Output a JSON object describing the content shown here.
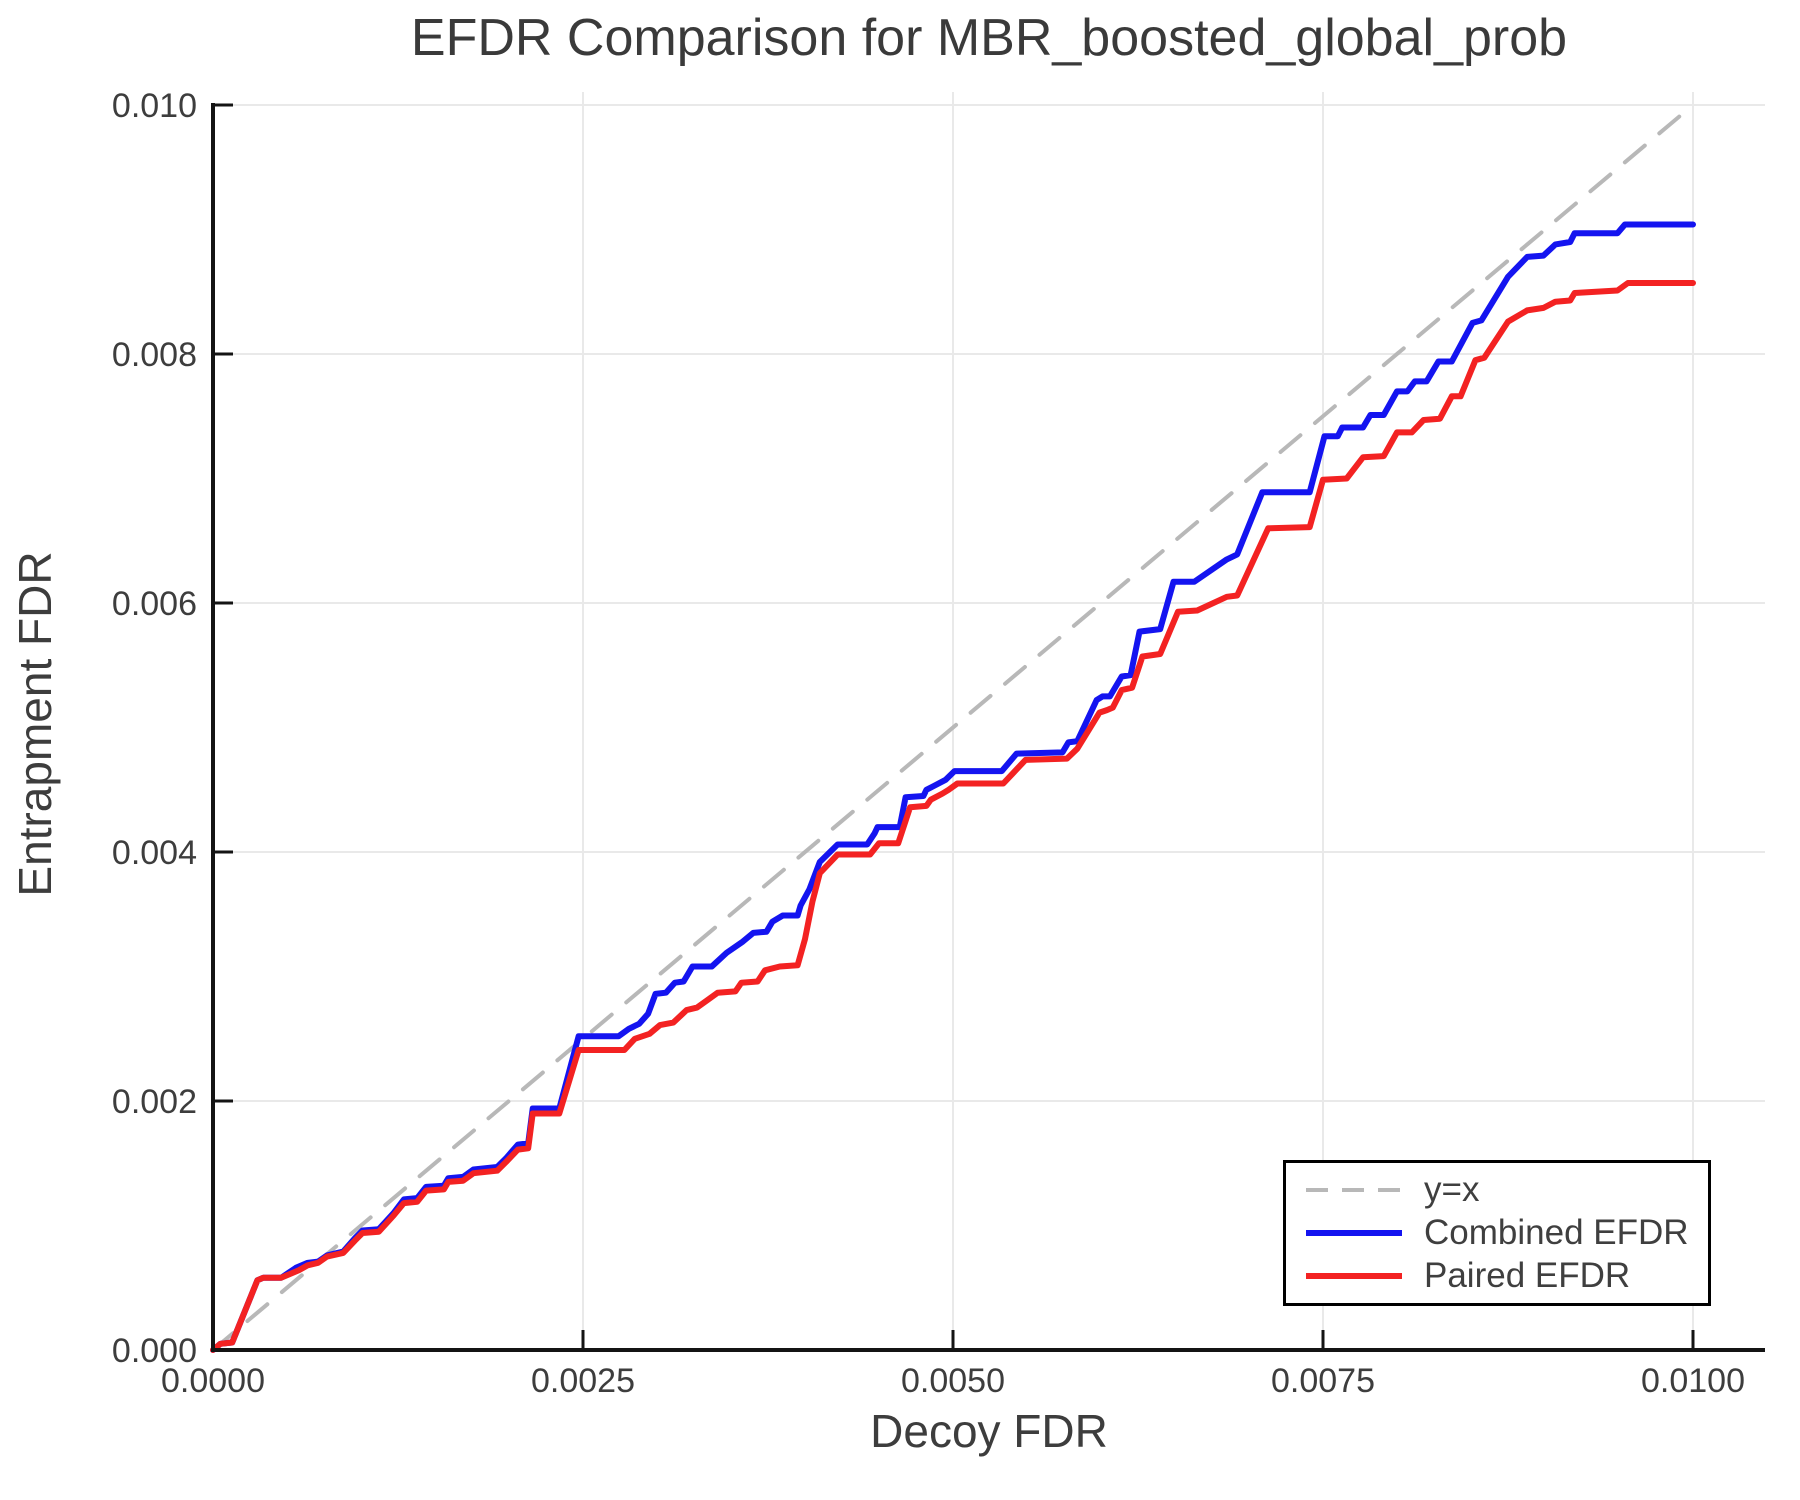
{
  "page": {
    "background": "#ffffff"
  },
  "chart_data": {
    "type": "line",
    "title": "EFDR Comparison for MBR_boosted_global_prob",
    "xlabel": "Decoy FDR",
    "ylabel": "Entrapment FDR",
    "xlim": [
      0.0,
      0.0105
    ],
    "ylim": [
      0.0,
      0.0101
    ],
    "grid": true,
    "grid_color": "#e9e9e9",
    "axis_color": "#141414",
    "text_color": "#3d3d3d",
    "legend_position": "bottom-right",
    "x_ticks": [
      {
        "value": 0.0,
        "label": "0.0000"
      },
      {
        "value": 0.0025,
        "label": "0.0025"
      },
      {
        "value": 0.005,
        "label": "0.0050"
      },
      {
        "value": 0.0075,
        "label": "0.0075"
      },
      {
        "value": 0.01,
        "label": "0.0100"
      }
    ],
    "y_ticks": [
      {
        "value": 0.0,
        "label": "0.000"
      },
      {
        "value": 0.002,
        "label": "0.002"
      },
      {
        "value": 0.004,
        "label": "0.004"
      },
      {
        "value": 0.006,
        "label": "0.006"
      },
      {
        "value": 0.008,
        "label": "0.008"
      },
      {
        "value": 0.01,
        "label": "0.010"
      }
    ],
    "series": [
      {
        "name": "y=x",
        "color": "#b8b8b8",
        "style": "dashed",
        "width": 4,
        "points": [
          [
            0.0,
            0.0
          ],
          [
            0.01,
            0.01
          ]
        ]
      },
      {
        "name": "Combined EFDR",
        "color": "#1414f0",
        "style": "solid",
        "width": 6,
        "points": [
          [
            0.0,
            0.0
          ],
          [
            5e-05,
            5e-05
          ],
          [
            0.00013,
            6e-05
          ],
          [
            0.0003,
            0.00056
          ],
          [
            0.00034,
            0.00058
          ],
          [
            0.00046,
            0.00058
          ],
          [
            0.00056,
            0.00066
          ],
          [
            0.00064,
            0.0007
          ],
          [
            0.00071,
            0.00071
          ],
          [
            0.00077,
            0.00076
          ],
          [
            0.00088,
            0.00079
          ],
          [
            0.00096,
            0.0009
          ],
          [
            0.00101,
            0.00096
          ],
          [
            0.00112,
            0.00097
          ],
          [
            0.00122,
            0.0011
          ],
          [
            0.00129,
            0.00121
          ],
          [
            0.00138,
            0.00122
          ],
          [
            0.00144,
            0.00131
          ],
          [
            0.00156,
            0.00132
          ],
          [
            0.00159,
            0.00138
          ],
          [
            0.00169,
            0.00139
          ],
          [
            0.00176,
            0.00145
          ],
          [
            0.00192,
            0.00147
          ],
          [
            0.00198,
            0.00154
          ],
          [
            0.00206,
            0.00165
          ],
          [
            0.00213,
            0.00166
          ],
          [
            0.00216,
            0.00194
          ],
          [
            0.00234,
            0.00194
          ],
          [
            0.00247,
            0.00252
          ],
          [
            0.00274,
            0.00252
          ],
          [
            0.00281,
            0.00258
          ],
          [
            0.00288,
            0.00262
          ],
          [
            0.00294,
            0.0027
          ],
          [
            0.00299,
            0.00286
          ],
          [
            0.00306,
            0.00287
          ],
          [
            0.00312,
            0.00295
          ],
          [
            0.00318,
            0.00296
          ],
          [
            0.00324,
            0.00308
          ],
          [
            0.00337,
            0.00308
          ],
          [
            0.00347,
            0.00319
          ],
          [
            0.00358,
            0.00328
          ],
          [
            0.00365,
            0.00335
          ],
          [
            0.00374,
            0.00336
          ],
          [
            0.00378,
            0.00344
          ],
          [
            0.00385,
            0.00349
          ],
          [
            0.00395,
            0.00349
          ],
          [
            0.00397,
            0.00357
          ],
          [
            0.00403,
            0.0037
          ],
          [
            0.0041,
            0.00392
          ],
          [
            0.00422,
            0.00406
          ],
          [
            0.00442,
            0.00406
          ],
          [
            0.00447,
            0.00415
          ],
          [
            0.00449,
            0.0042
          ],
          [
            0.00464,
            0.0042
          ],
          [
            0.00468,
            0.00444
          ],
          [
            0.0048,
            0.00445
          ],
          [
            0.00482,
            0.0045
          ],
          [
            0.00487,
            0.00453
          ],
          [
            0.00495,
            0.00458
          ],
          [
            0.00501,
            0.00465
          ],
          [
            0.00533,
            0.00465
          ],
          [
            0.00543,
            0.00479
          ],
          [
            0.00574,
            0.0048
          ],
          [
            0.00578,
            0.00488
          ],
          [
            0.00584,
            0.00489
          ],
          [
            0.00597,
            0.00522
          ],
          [
            0.00601,
            0.00525
          ],
          [
            0.00606,
            0.00525
          ],
          [
            0.00614,
            0.00541
          ],
          [
            0.0062,
            0.00542
          ],
          [
            0.00626,
            0.00577
          ],
          [
            0.0064,
            0.00579
          ],
          [
            0.00649,
            0.00617
          ],
          [
            0.00663,
            0.00617
          ],
          [
            0.00685,
            0.00635
          ],
          [
            0.00692,
            0.00639
          ],
          [
            0.00709,
            0.00689
          ],
          [
            0.00741,
            0.00689
          ],
          [
            0.00751,
            0.00734
          ],
          [
            0.0076,
            0.00734
          ],
          [
            0.00763,
            0.00741
          ],
          [
            0.00777,
            0.00741
          ],
          [
            0.00782,
            0.00751
          ],
          [
            0.00791,
            0.00751
          ],
          [
            0.008,
            0.0077
          ],
          [
            0.00807,
            0.0077
          ],
          [
            0.00812,
            0.00778
          ],
          [
            0.0082,
            0.00778
          ],
          [
            0.00828,
            0.00794
          ],
          [
            0.00837,
            0.00794
          ],
          [
            0.00851,
            0.00825
          ],
          [
            0.00857,
            0.00827
          ],
          [
            0.00875,
            0.00862
          ],
          [
            0.00888,
            0.00878
          ],
          [
            0.00899,
            0.00879
          ],
          [
            0.00907,
            0.00888
          ],
          [
            0.00917,
            0.0089
          ],
          [
            0.0092,
            0.00897
          ],
          [
            0.00949,
            0.00897
          ],
          [
            0.00954,
            0.00904
          ],
          [
            0.01,
            0.00904
          ]
        ]
      },
      {
        "name": "Paired EFDR",
        "color": "#f32222",
        "style": "solid",
        "width": 6,
        "points": [
          [
            0.0,
            0.0
          ],
          [
            5e-05,
            5e-05
          ],
          [
            0.00013,
            6e-05
          ],
          [
            0.0003,
            0.00056
          ],
          [
            0.00034,
            0.00058
          ],
          [
            0.00046,
            0.00058
          ],
          [
            0.00058,
            0.00064
          ],
          [
            0.00064,
            0.00068
          ],
          [
            0.00071,
            0.0007
          ],
          [
            0.00077,
            0.00075
          ],
          [
            0.00088,
            0.00078
          ],
          [
            0.00096,
            0.00088
          ],
          [
            0.00101,
            0.00094
          ],
          [
            0.00112,
            0.00095
          ],
          [
            0.00122,
            0.00108
          ],
          [
            0.00129,
            0.00118
          ],
          [
            0.00138,
            0.00119
          ],
          [
            0.00144,
            0.00128
          ],
          [
            0.00156,
            0.00129
          ],
          [
            0.00159,
            0.00135
          ],
          [
            0.00169,
            0.00136
          ],
          [
            0.00176,
            0.00142
          ],
          [
            0.00192,
            0.00144
          ],
          [
            0.00198,
            0.00151
          ],
          [
            0.00206,
            0.00161
          ],
          [
            0.00213,
            0.00162
          ],
          [
            0.00216,
            0.0019
          ],
          [
            0.00234,
            0.0019
          ],
          [
            0.00247,
            0.00241
          ],
          [
            0.00278,
            0.00241
          ],
          [
            0.00285,
            0.0025
          ],
          [
            0.00295,
            0.00254
          ],
          [
            0.00302,
            0.00261
          ],
          [
            0.00311,
            0.00263
          ],
          [
            0.0032,
            0.00273
          ],
          [
            0.00327,
            0.00275
          ],
          [
            0.00334,
            0.00281
          ],
          [
            0.00341,
            0.00287
          ],
          [
            0.00353,
            0.00288
          ],
          [
            0.00357,
            0.00295
          ],
          [
            0.00368,
            0.00296
          ],
          [
            0.00373,
            0.00305
          ],
          [
            0.00383,
            0.00308
          ],
          [
            0.00395,
            0.00309
          ],
          [
            0.004,
            0.0033
          ],
          [
            0.00405,
            0.0036
          ],
          [
            0.0041,
            0.00383
          ],
          [
            0.00422,
            0.00398
          ],
          [
            0.00444,
            0.00398
          ],
          [
            0.0045,
            0.00407
          ],
          [
            0.00463,
            0.00407
          ],
          [
            0.00471,
            0.00436
          ],
          [
            0.00482,
            0.00437
          ],
          [
            0.00485,
            0.00442
          ],
          [
            0.00493,
            0.00447
          ],
          [
            0.00497,
            0.0045
          ],
          [
            0.00503,
            0.00455
          ],
          [
            0.00534,
            0.00455
          ],
          [
            0.00549,
            0.00474
          ],
          [
            0.00577,
            0.00475
          ],
          [
            0.00584,
            0.00483
          ],
          [
            0.00599,
            0.00512
          ],
          [
            0.00604,
            0.00514
          ],
          [
            0.00608,
            0.00516
          ],
          [
            0.00614,
            0.0053
          ],
          [
            0.00621,
            0.00532
          ],
          [
            0.00628,
            0.00557
          ],
          [
            0.0064,
            0.00559
          ],
          [
            0.00652,
            0.00593
          ],
          [
            0.00665,
            0.00594
          ],
          [
            0.00685,
            0.00605
          ],
          [
            0.00692,
            0.00606
          ],
          [
            0.00713,
            0.0066
          ],
          [
            0.00741,
            0.00661
          ],
          [
            0.0075,
            0.00699
          ],
          [
            0.00766,
            0.007
          ],
          [
            0.00777,
            0.00717
          ],
          [
            0.00791,
            0.00718
          ],
          [
            0.008,
            0.00737
          ],
          [
            0.0081,
            0.00737
          ],
          [
            0.00818,
            0.00747
          ],
          [
            0.00829,
            0.00748
          ],
          [
            0.00837,
            0.00766
          ],
          [
            0.00843,
            0.00766
          ],
          [
            0.00853,
            0.00795
          ],
          [
            0.00859,
            0.00797
          ],
          [
            0.00875,
            0.00826
          ],
          [
            0.00888,
            0.00835
          ],
          [
            0.00899,
            0.00837
          ],
          [
            0.00907,
            0.00842
          ],
          [
            0.00917,
            0.00843
          ],
          [
            0.0092,
            0.00849
          ],
          [
            0.00949,
            0.00851
          ],
          [
            0.00956,
            0.00857
          ],
          [
            0.01,
            0.00857
          ]
        ]
      }
    ]
  }
}
